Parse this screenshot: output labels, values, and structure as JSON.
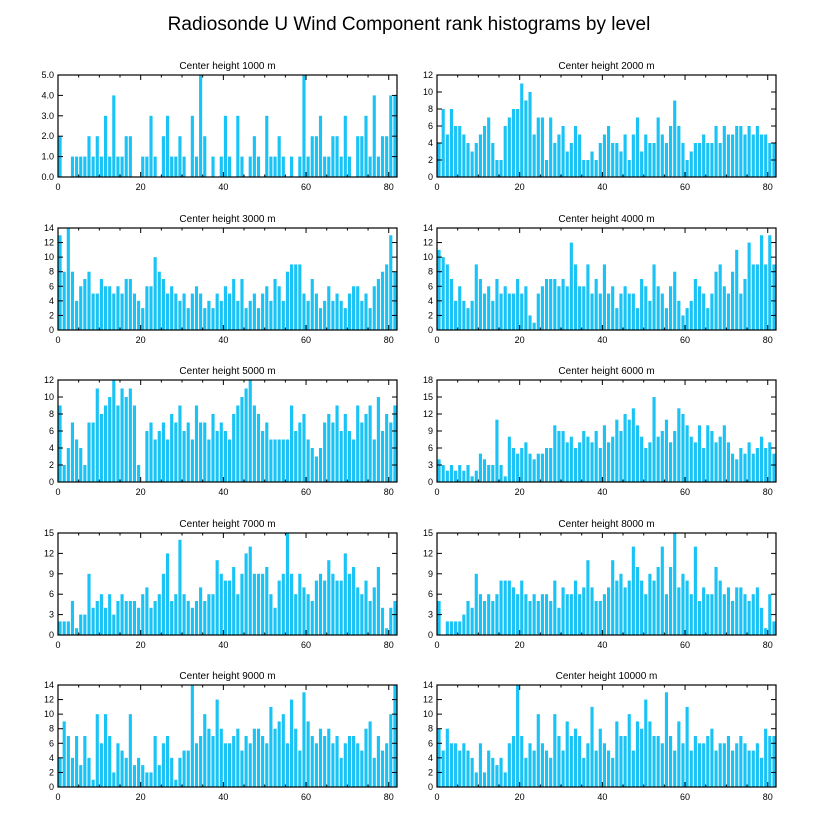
{
  "figure": {
    "title": "Radiosonde U Wind Component rank histograms by level",
    "bar_color": "#19c3f5"
  },
  "chart_data": [
    {
      "type": "bar",
      "title": "Center height 1000 m",
      "x_range": [
        0,
        82
      ],
      "xticks": [
        0,
        20,
        40,
        60,
        80
      ],
      "ylim": [
        0,
        5
      ],
      "yticks": [
        0,
        1,
        2,
        3,
        4,
        5
      ],
      "ytick_labels": [
        "0.0",
        "1.0",
        "2.0",
        "3.0",
        "4.0",
        "5.0"
      ],
      "values": [
        2,
        0,
        0,
        1,
        1,
        1,
        1,
        2,
        1,
        2,
        1,
        3,
        1,
        4,
        1,
        1,
        2,
        2,
        0,
        0,
        1,
        1,
        3,
        1,
        0,
        2,
        3,
        1,
        1,
        2,
        1,
        0,
        3,
        1,
        5,
        2,
        0,
        1,
        0,
        1,
        3,
        1,
        0,
        3,
        1,
        0,
        1,
        2,
        1,
        0,
        3,
        1,
        1,
        2,
        1,
        0,
        1,
        0,
        1,
        5,
        1,
        2,
        2,
        3,
        1,
        1,
        2,
        2,
        1,
        3,
        1,
        0,
        2,
        2,
        3,
        1,
        4,
        1,
        2,
        2,
        4,
        4
      ]
    },
    {
      "type": "bar",
      "title": "Center height 2000 m",
      "x_range": [
        0,
        82
      ],
      "xticks": [
        0,
        20,
        40,
        60,
        80
      ],
      "ylim": [
        0,
        12
      ],
      "yticks": [
        0,
        2,
        4,
        6,
        8,
        10,
        12
      ],
      "ytick_labels": [
        "0",
        "2",
        "4",
        "6",
        "8",
        "10",
        "12"
      ],
      "values": [
        4,
        8,
        5,
        8,
        6,
        6,
        5,
        4,
        3,
        4,
        5,
        6,
        7,
        4,
        2,
        2,
        6,
        7,
        8,
        8,
        11,
        9,
        10,
        5,
        7,
        7,
        2,
        7,
        4,
        5,
        6,
        3,
        4,
        6,
        5,
        2,
        2,
        3,
        2,
        4,
        5,
        6,
        4,
        4,
        3,
        5,
        2,
        5,
        7,
        3,
        5,
        4,
        4,
        7,
        5,
        4,
        6,
        9,
        6,
        4,
        2,
        3,
        4,
        4,
        5,
        4,
        4,
        6,
        4,
        6,
        5,
        5,
        6,
        6,
        5,
        6,
        5,
        6,
        5,
        5,
        4,
        4
      ]
    },
    {
      "type": "bar",
      "title": "Center height 3000 m",
      "x_range": [
        0,
        82
      ],
      "xticks": [
        0,
        20,
        40,
        60,
        80
      ],
      "ylim": [
        0,
        14
      ],
      "yticks": [
        0,
        2,
        4,
        6,
        8,
        10,
        12,
        14
      ],
      "ytick_labels": [
        "0",
        "2",
        "4",
        "6",
        "8",
        "10",
        "12",
        "14"
      ],
      "values": [
        13,
        8,
        14,
        8,
        4,
        6,
        7,
        8,
        5,
        5,
        7,
        6,
        6,
        5,
        6,
        5,
        7,
        7,
        5,
        4,
        3,
        6,
        6,
        10,
        8,
        7,
        5,
        6,
        5,
        4,
        5,
        3,
        5,
        6,
        5,
        3,
        4,
        3,
        5,
        4,
        6,
        5,
        7,
        4,
        7,
        3,
        4,
        5,
        3,
        5,
        6,
        4,
        7,
        6,
        4,
        8,
        9,
        9,
        9,
        5,
        4,
        7,
        5,
        3,
        4,
        6,
        4,
        5,
        4,
        3,
        5,
        6,
        6,
        4,
        5,
        3,
        6,
        7,
        8,
        9,
        13,
        8
      ]
    },
    {
      "type": "bar",
      "title": "Center height 4000 m",
      "x_range": [
        0,
        82
      ],
      "xticks": [
        0,
        20,
        40,
        60,
        80
      ],
      "ylim": [
        0,
        14
      ],
      "yticks": [
        0,
        2,
        4,
        6,
        8,
        10,
        12,
        14
      ],
      "ytick_labels": [
        "0",
        "2",
        "4",
        "6",
        "8",
        "10",
        "12",
        "14"
      ],
      "values": [
        11,
        10,
        9,
        7,
        4,
        6,
        4,
        3,
        4,
        9,
        7,
        5,
        6,
        4,
        7,
        5,
        6,
        5,
        5,
        7,
        5,
        6,
        2,
        1,
        5,
        6,
        7,
        7,
        7,
        6,
        7,
        6,
        12,
        9,
        6,
        6,
        9,
        5,
        7,
        5,
        9,
        5,
        6,
        3,
        5,
        6,
        5,
        5,
        3,
        7,
        6,
        4,
        9,
        6,
        5,
        3,
        6,
        8,
        4,
        2,
        3,
        4,
        7,
        6,
        5,
        3,
        5,
        8,
        9,
        6,
        5,
        8,
        11,
        5,
        7,
        12,
        9,
        9,
        13,
        9,
        13,
        9
      ]
    },
    {
      "type": "bar",
      "title": "Center height 5000 m",
      "x_range": [
        0,
        82
      ],
      "xticks": [
        0,
        20,
        40,
        60,
        80
      ],
      "ylim": [
        0,
        12
      ],
      "yticks": [
        0,
        2,
        4,
        6,
        8,
        10,
        12
      ],
      "ytick_labels": [
        "0",
        "2",
        "4",
        "6",
        "8",
        "10",
        "12"
      ],
      "values": [
        9,
        2,
        4,
        7,
        5,
        4,
        2,
        7,
        7,
        11,
        8,
        9,
        10,
        12,
        9,
        11,
        10,
        11,
        9,
        2,
        0,
        6,
        7,
        5,
        6,
        7,
        5,
        8,
        7,
        9,
        6,
        7,
        5,
        9,
        7,
        7,
        5,
        8,
        6,
        7,
        6,
        5,
        8,
        9,
        10,
        11,
        12,
        9,
        8,
        6,
        7,
        5,
        5,
        5,
        5,
        5,
        9,
        6,
        7,
        8,
        5,
        4,
        3,
        4,
        7,
        8,
        7,
        9,
        6,
        8,
        6,
        5,
        9,
        7,
        8,
        9,
        5,
        10,
        6,
        8,
        7,
        9
      ]
    },
    {
      "type": "bar",
      "title": "Center height 6000 m",
      "x_range": [
        0,
        82
      ],
      "xticks": [
        0,
        20,
        40,
        60,
        80
      ],
      "ylim": [
        0,
        18
      ],
      "yticks": [
        0,
        3,
        6,
        9,
        12,
        15,
        18
      ],
      "ytick_labels": [
        "0",
        "3",
        "6",
        "9",
        "12",
        "15",
        "18"
      ],
      "values": [
        4,
        3,
        2,
        3,
        2,
        3,
        2,
        3,
        1,
        2,
        5,
        4,
        3,
        3,
        11,
        3,
        1,
        8,
        6,
        5,
        6,
        7,
        5,
        4,
        5,
        5,
        6,
        6,
        10,
        9,
        9,
        7,
        8,
        6,
        7,
        9,
        8,
        7,
        9,
        6,
        10,
        7,
        8,
        11,
        9,
        12,
        11,
        13,
        10,
        8,
        6,
        7,
        15,
        8,
        9,
        11,
        7,
        9,
        13,
        12,
        10,
        8,
        7,
        10,
        6,
        10,
        9,
        7,
        8,
        10,
        7,
        5,
        4,
        6,
        5,
        7,
        5,
        6,
        8,
        6,
        7,
        5
      ]
    },
    {
      "type": "bar",
      "title": "Center height 7000 m",
      "x_range": [
        0,
        82
      ],
      "xticks": [
        0,
        20,
        40,
        60,
        80
      ],
      "ylim": [
        0,
        15
      ],
      "yticks": [
        0,
        3,
        6,
        9,
        12,
        15
      ],
      "ytick_labels": [
        "0",
        "3",
        "6",
        "9",
        "12",
        "15"
      ],
      "values": [
        2,
        2,
        2,
        5,
        1,
        3,
        3,
        9,
        4,
        5,
        6,
        4,
        6,
        3,
        5,
        6,
        5,
        5,
        5,
        4,
        6,
        7,
        4,
        5,
        6,
        9,
        12,
        5,
        6,
        14,
        6,
        5,
        4,
        5,
        7,
        5,
        6,
        6,
        11,
        9,
        8,
        8,
        10,
        6,
        9,
        12,
        13,
        9,
        9,
        9,
        10,
        6,
        4,
        8,
        9,
        15,
        9,
        6,
        9,
        7,
        6,
        5,
        8,
        9,
        8,
        11,
        9,
        8,
        8,
        12,
        9,
        10,
        7,
        6,
        8,
        5,
        7,
        10,
        4,
        1,
        4,
        5
      ]
    },
    {
      "type": "bar",
      "title": "Center height 8000 m",
      "x_range": [
        0,
        82
      ],
      "xticks": [
        0,
        20,
        40,
        60,
        80
      ],
      "ylim": [
        0,
        15
      ],
      "yticks": [
        0,
        3,
        6,
        9,
        12,
        15
      ],
      "ytick_labels": [
        "0",
        "3",
        "6",
        "9",
        "12",
        "15"
      ],
      "values": [
        5,
        0,
        2,
        2,
        2,
        2,
        3,
        5,
        4,
        9,
        6,
        5,
        6,
        5,
        6,
        8,
        8,
        8,
        7,
        6,
        8,
        6,
        5,
        6,
        5,
        6,
        6,
        5,
        8,
        4,
        7,
        6,
        6,
        8,
        6,
        7,
        11,
        7,
        5,
        5,
        6,
        7,
        11,
        8,
        9,
        7,
        8,
        13,
        10,
        8,
        6,
        9,
        8,
        10,
        13,
        6,
        10,
        15,
        7,
        9,
        8,
        6,
        13,
        5,
        7,
        6,
        6,
        10,
        8,
        6,
        7,
        5,
        7,
        7,
        6,
        5,
        6,
        7,
        4,
        1,
        6,
        2
      ]
    },
    {
      "type": "bar",
      "title": "Center height 9000 m",
      "x_range": [
        0,
        82
      ],
      "xticks": [
        0,
        20,
        40,
        60,
        80
      ],
      "ylim": [
        0,
        14
      ],
      "yticks": [
        0,
        2,
        4,
        6,
        8,
        10,
        12,
        14
      ],
      "ytick_labels": [
        "0",
        "2",
        "4",
        "6",
        "8",
        "10",
        "12",
        "14"
      ],
      "values": [
        4,
        9,
        7,
        4,
        7,
        3,
        7,
        4,
        1,
        10,
        6,
        10,
        7,
        2,
        6,
        5,
        4,
        10,
        3,
        4,
        3,
        2,
        2,
        7,
        3,
        6,
        7,
        4,
        1,
        4,
        5,
        5,
        14,
        6,
        7,
        10,
        8,
        7,
        12,
        8,
        6,
        6,
        7,
        8,
        5,
        7,
        6,
        8,
        8,
        7,
        6,
        11,
        8,
        9,
        10,
        6,
        12,
        8,
        5,
        13,
        9,
        7,
        6,
        8,
        7,
        8,
        6,
        7,
        4,
        6,
        7,
        7,
        6,
        5,
        8,
        9,
        4,
        7,
        5,
        6,
        10,
        14
      ]
    },
    {
      "type": "bar",
      "title": "Center height 10000 m",
      "x_range": [
        0,
        82
      ],
      "xticks": [
        0,
        20,
        40,
        60,
        80
      ],
      "ylim": [
        0,
        14
      ],
      "yticks": [
        0,
        2,
        4,
        6,
        8,
        10,
        12,
        14
      ],
      "ytick_labels": [
        "0",
        "2",
        "4",
        "6",
        "8",
        "10",
        "12",
        "14"
      ],
      "values": [
        8,
        5,
        8,
        6,
        6,
        5,
        6,
        5,
        4,
        2,
        6,
        2,
        5,
        4,
        3,
        4,
        2,
        6,
        7,
        14,
        7,
        4,
        6,
        5,
        10,
        6,
        5,
        4,
        10,
        7,
        5,
        9,
        7,
        8,
        7,
        4,
        6,
        11,
        5,
        8,
        6,
        5,
        4,
        9,
        7,
        7,
        10,
        5,
        9,
        8,
        12,
        9,
        7,
        7,
        6,
        13,
        7,
        5,
        9,
        6,
        11,
        5,
        7,
        6,
        6,
        7,
        8,
        5,
        6,
        6,
        7,
        5,
        6,
        7,
        6,
        5,
        5,
        6,
        4,
        8,
        7,
        7
      ]
    }
  ]
}
